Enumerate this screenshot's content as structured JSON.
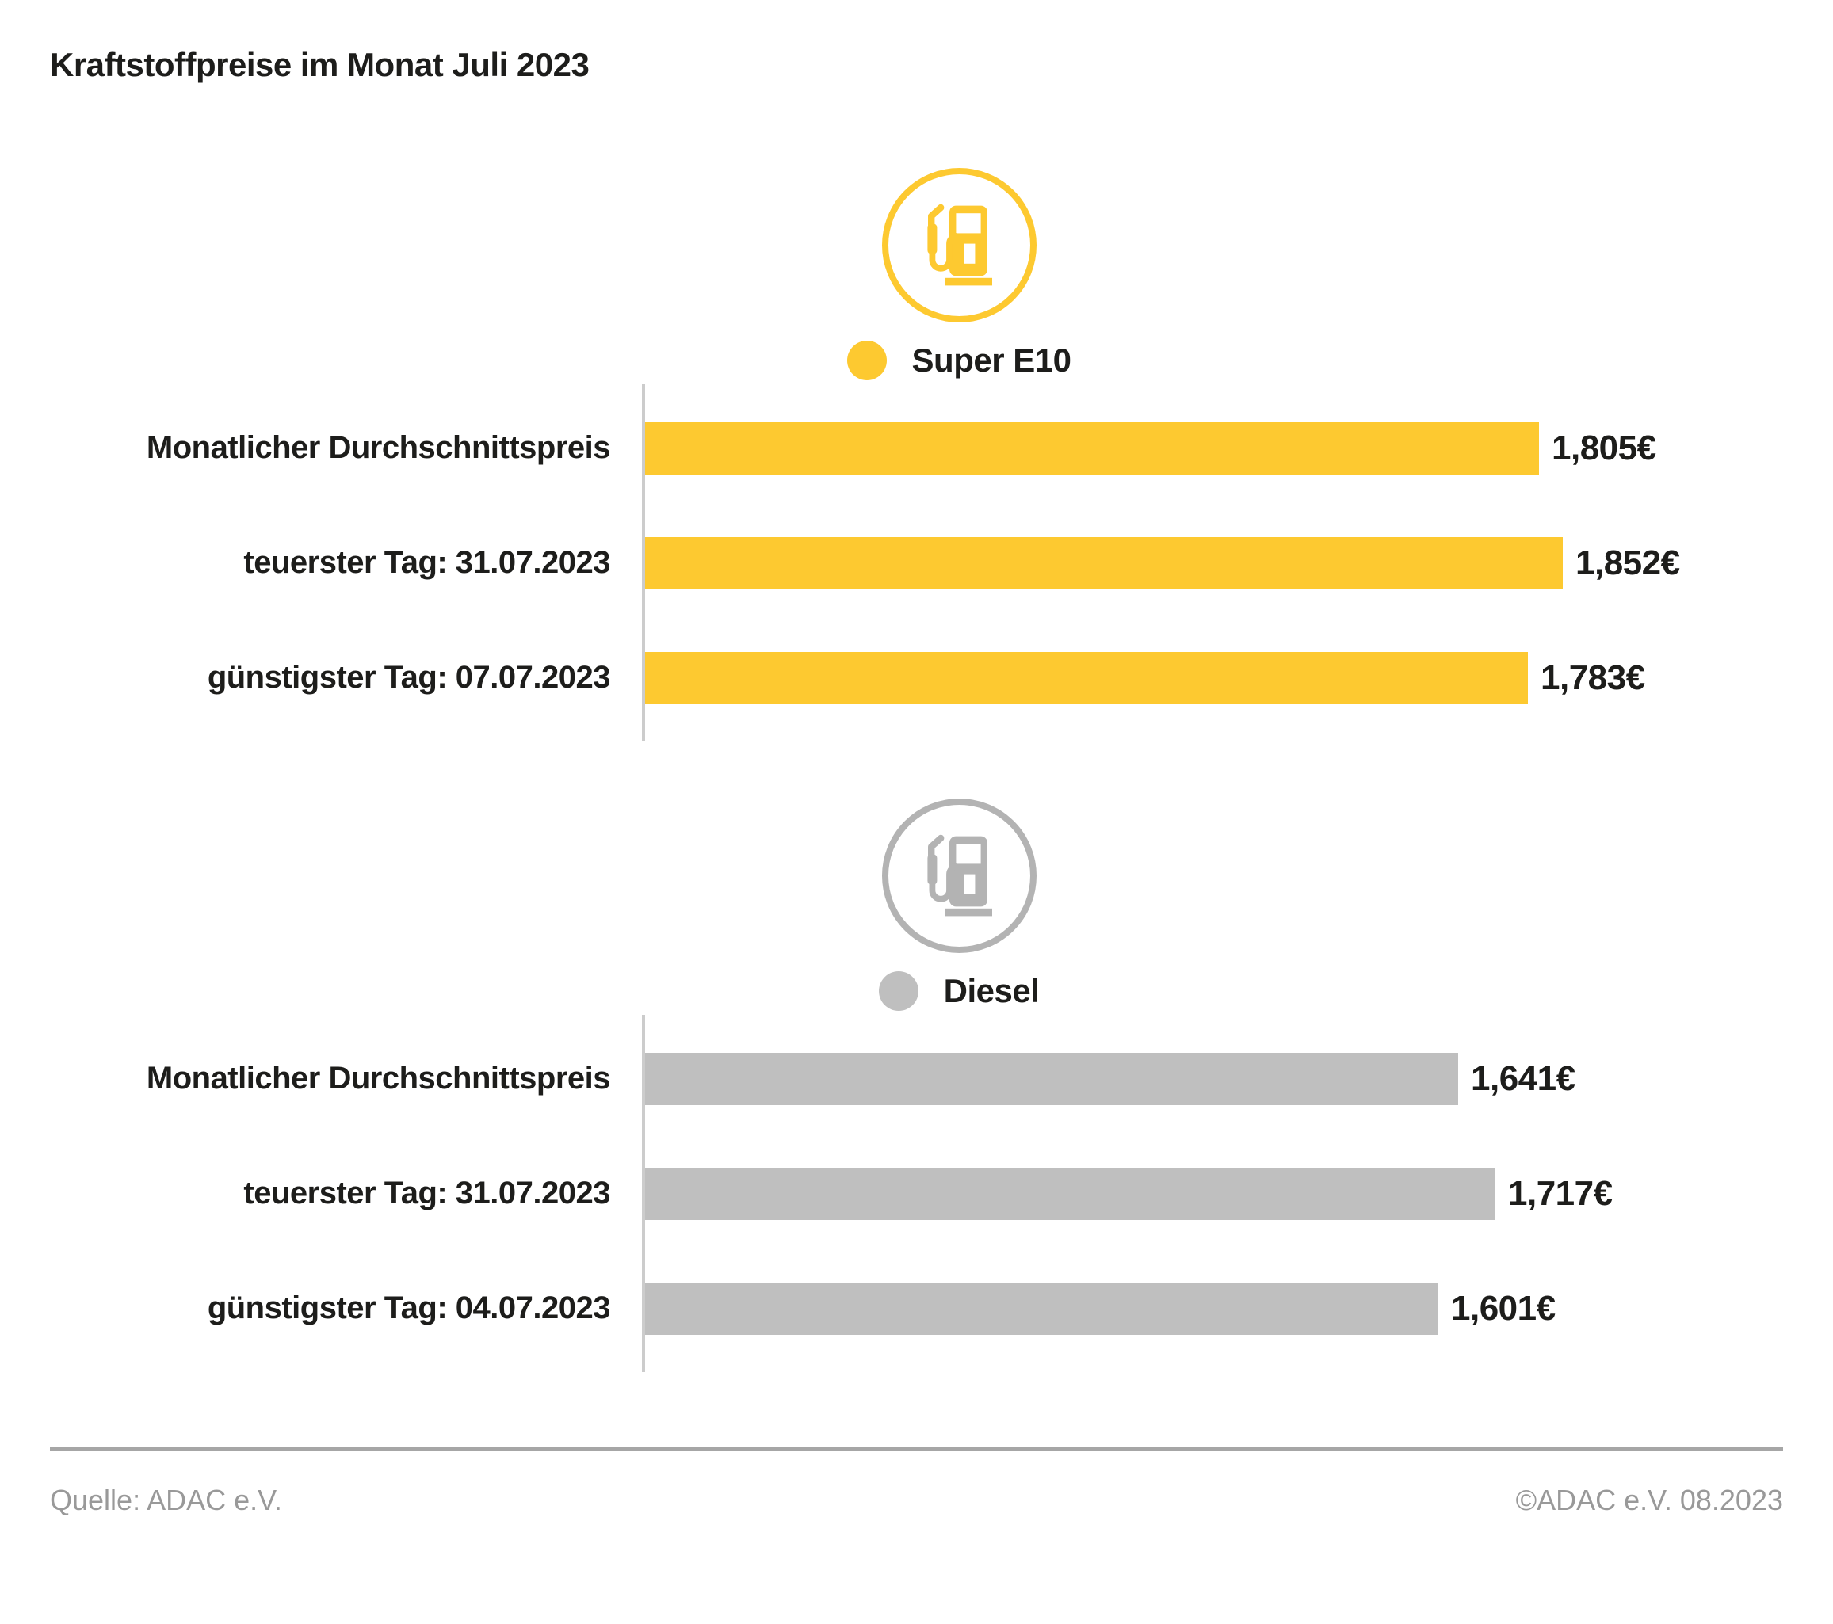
{
  "title": "Kraftstoffpreise im Monat Juli 2023",
  "colors": {
    "super_e10": "#fdc930",
    "diesel_bar": "#bfbfbf",
    "diesel_icon": "#b3b3b3",
    "text": "#1d1d1b",
    "axis": "#cccccc",
    "divider": "#a6a6a6",
    "footer_text": "#999999"
  },
  "chart_data": [
    {
      "type": "bar",
      "orientation": "horizontal",
      "title": "Super E10",
      "color": "#fdc930",
      "icon_color": "#fdc930",
      "icon": "fuel-pump-icon",
      "categories": [
        "Monatlicher Durchschnittspreis",
        "teuerster Tag: 31.07.2023",
        "günstigster Tag: 07.07.2023"
      ],
      "values": [
        1.805,
        1.852,
        1.783
      ],
      "labels": [
        "1,805€",
        "1,852€",
        "1,783€"
      ],
      "unit": "€",
      "xlim": [
        0,
        2.0
      ],
      "grid": false,
      "legend_position": "top-center"
    },
    {
      "type": "bar",
      "orientation": "horizontal",
      "title": "Diesel",
      "color": "#bfbfbf",
      "icon_color": "#b3b3b3",
      "icon": "fuel-pump-icon",
      "categories": [
        "Monatlicher Durchschnittspreis",
        "teuerster Tag: 31.07.2023",
        "günstigster Tag: 04.07.2023"
      ],
      "values": [
        1.641,
        1.717,
        1.601
      ],
      "labels": [
        "1,641€",
        "1,717€",
        "1,601€"
      ],
      "unit": "€",
      "xlim": [
        0,
        2.0
      ],
      "grid": false,
      "legend_position": "top-center"
    }
  ],
  "footer": {
    "source": "Quelle: ADAC e.V.",
    "copyright": "©ADAC e.V. 08.2023"
  }
}
